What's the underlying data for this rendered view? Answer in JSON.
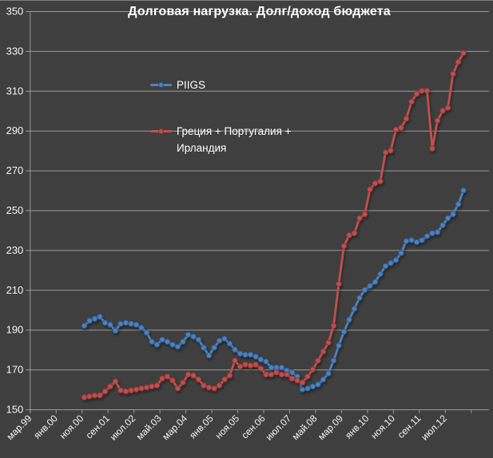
{
  "title": "Долговая нагрузка. Долг/доход бюджета",
  "colors": {
    "background": "#3F3F3F",
    "border_top": "#7F7F7F",
    "gridline": "#9B9B9B",
    "axis": "#9B9B9B",
    "text": "#F5F5F5",
    "series_piigs": "#4F81BD",
    "series_piigs_edge": "#2E5A8B",
    "series_gpi": "#C0504D",
    "series_gpi_edge": "#8B3936"
  },
  "legend": [
    {
      "label": "PIIGS",
      "color": "#4F81BD"
    },
    {
      "label": "Греция + Португалия + Ирландия",
      "color": "#C0504D"
    }
  ],
  "chart_data": {
    "type": "line",
    "title": "Долговая нагрузка. Долг/доход бюджета",
    "xlabel": "",
    "ylabel": "",
    "ylim": [
      150,
      350
    ],
    "y_ticks": [
      150,
      170,
      190,
      210,
      230,
      250,
      270,
      290,
      310,
      330,
      350
    ],
    "grid": true,
    "legend_position": "inside-top-left",
    "marker": "circle",
    "x_axis_tick_labels": [
      "мар.99",
      "янв.00",
      "ноя.00",
      "сен.01",
      "июл.02",
      "май.03",
      "мар.04",
      "янв.05",
      "ноя.05",
      "сен.06",
      "июл.07",
      "май.08",
      "мар.09",
      "янв.10",
      "ноя.10",
      "сен.11",
      "июл.12"
    ],
    "x": [
      "ноя.00",
      "янв.01",
      "мар.01",
      "май.01",
      "июл.01",
      "сен.01",
      "ноя.01",
      "янв.02",
      "мар.02",
      "май.02",
      "июл.02",
      "сен.02",
      "ноя.02",
      "янв.03",
      "мар.03",
      "май.03",
      "июл.03",
      "сен.03",
      "ноя.03",
      "янв.04",
      "мар.04",
      "май.04",
      "июл.04",
      "сен.04",
      "ноя.04",
      "янв.05",
      "мар.05",
      "май.05",
      "июл.05",
      "сен.05",
      "ноя.05",
      "янв.06",
      "мар.06",
      "май.06",
      "июл.06",
      "сен.06",
      "ноя.06",
      "янв.07",
      "мар.07",
      "май.07",
      "июл.07",
      "сен.07",
      "ноя.07",
      "янв.08",
      "мар.08",
      "май.08",
      "июл.08",
      "сен.08",
      "ноя.08",
      "янв.09",
      "мар.09",
      "май.09",
      "июл.09",
      "сен.09",
      "ноя.09",
      "янв.10",
      "мар.10",
      "май.10",
      "июл.10",
      "сен.10",
      "ноя.10",
      "янв.11",
      "мар.11",
      "май.11",
      "июл.11",
      "сен.11",
      "ноя.11",
      "янв.12",
      "мар.12",
      "май.12",
      "июл.12",
      "сен.12",
      "ноя.12",
      "янв.13"
    ],
    "series": [
      {
        "name": "PIIGS",
        "color": "#4F81BD",
        "values": [
          192,
          194.5,
          195.5,
          196.5,
          193.5,
          192.5,
          189.5,
          193,
          193.5,
          193,
          192.5,
          191,
          188.5,
          184,
          182.5,
          185,
          184,
          182.5,
          181.5,
          184,
          187.5,
          186.5,
          185,
          181,
          177,
          181,
          184.5,
          185.5,
          183,
          180,
          178,
          177.5,
          177.5,
          176.5,
          175,
          174,
          171,
          171,
          171,
          169.5,
          168.5,
          166.5,
          160,
          160.5,
          161.5,
          162.5,
          165,
          168,
          174.5,
          182,
          189,
          195,
          200.5,
          206,
          210,
          212,
          214,
          218,
          222,
          223.5,
          225,
          228.5,
          234.5,
          235,
          234,
          235,
          237,
          238.5,
          239,
          242.5,
          246,
          248,
          253,
          260
        ]
      },
      {
        "name": "Греция + Португалия + Ирландия",
        "color": "#C0504D",
        "values": [
          156,
          156.5,
          157,
          157,
          159,
          161.5,
          164,
          159.5,
          159,
          159.5,
          160,
          160.5,
          161,
          161.5,
          162,
          165.5,
          166.5,
          164.5,
          160.5,
          163.5,
          167.5,
          167,
          165,
          162,
          161,
          160.5,
          162,
          165,
          167,
          174.5,
          171.5,
          172.5,
          172,
          172.5,
          170.5,
          167.5,
          167.5,
          168.5,
          167.5,
          167.5,
          165.5,
          164.5,
          163.5,
          166.5,
          170,
          174.5,
          179,
          183.5,
          192,
          213,
          232,
          237.5,
          238.5,
          246,
          248,
          260.5,
          263.5,
          264.5,
          279,
          280,
          290.5,
          291.5,
          296,
          304.5,
          308.5,
          310,
          310,
          281,
          295,
          300,
          301.5,
          318.5,
          324.5,
          329
        ]
      }
    ]
  }
}
